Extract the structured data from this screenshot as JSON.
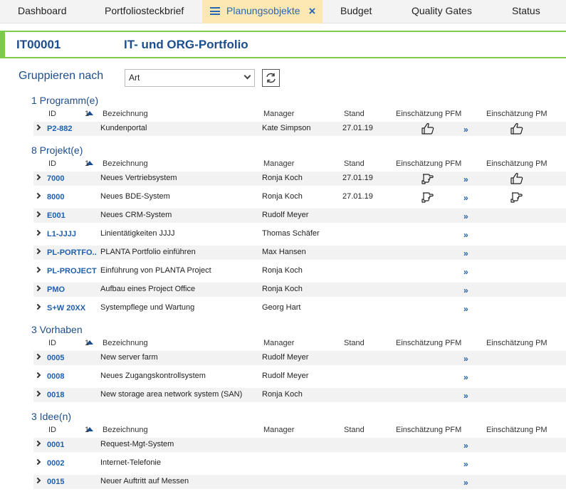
{
  "tabs": [
    {
      "label": "Dashboard"
    },
    {
      "label": "Portfoliosteckbrief"
    },
    {
      "label": "Planungsobjekte",
      "active": true
    },
    {
      "label": "Budget"
    },
    {
      "label": "Quality Gates"
    },
    {
      "label": "Status"
    }
  ],
  "header": {
    "code": "IT00001",
    "title": "IT- und ORG-Portfolio"
  },
  "grouping": {
    "label": "Gruppieren nach",
    "selected": "Art"
  },
  "columns": {
    "id": "ID",
    "sort": "1",
    "bezeichnung": "Bezeichnung",
    "manager": "Manager",
    "stand": "Stand",
    "pfm": "Einschätzung PFM",
    "pm": "Einschätzung PM"
  },
  "link_symbol": "»",
  "sections": [
    {
      "title": "1 Programm(e)",
      "rows": [
        {
          "id": "P2-882",
          "bezeichnung": "Kundenportal",
          "manager": "Kate Simpson",
          "stand": "27.01.19",
          "pfm": "thumbs-up-icon",
          "pm": "thumbs-up-icon"
        }
      ]
    },
    {
      "title": "8 Projekt(e)",
      "rows": [
        {
          "id": "7000",
          "bezeichnung": "Neues Vertriebsystem",
          "manager": "Ronja Koch",
          "stand": "27.01.19",
          "pfm": "thumbs-sideways-icon",
          "pm": "thumbs-up-icon"
        },
        {
          "id": "8000",
          "bezeichnung": "Neues BDE-System",
          "manager": "Ronja Koch",
          "stand": "27.01.19",
          "pfm": "thumbs-sideways-icon",
          "pm": "thumbs-sideways-icon"
        },
        {
          "id": "E001",
          "bezeichnung": "Neues CRM-System",
          "manager": "Rudolf Meyer",
          "stand": "",
          "pfm": "",
          "pm": ""
        },
        {
          "id": "L1-JJJJ",
          "bezeichnung": "Linientätigkeiten JJJJ",
          "manager": "Thomas Schäfer",
          "stand": "",
          "pfm": "",
          "pm": ""
        },
        {
          "id": "PL-PORTFO...",
          "bezeichnung": "PLANTA Portfolio einführen",
          "manager": "Max Hansen",
          "stand": "",
          "pfm": "",
          "pm": ""
        },
        {
          "id": "PL-PROJECT",
          "bezeichnung": "Einführung von PLANTA Project",
          "manager": "Ronja Koch",
          "stand": "",
          "pfm": "",
          "pm": ""
        },
        {
          "id": "PMO",
          "bezeichnung": "Aufbau eines Project Office",
          "manager": "Ronja Koch",
          "stand": "",
          "pfm": "",
          "pm": ""
        },
        {
          "id": "S+W 20XX",
          "bezeichnung": "Systempflege und Wartung",
          "manager": "Georg Hart",
          "stand": "",
          "pfm": "",
          "pm": ""
        }
      ]
    },
    {
      "title": "3 Vorhaben",
      "rows": [
        {
          "id": "0005",
          "bezeichnung": "New server farm",
          "manager": "Rudolf Meyer",
          "stand": "",
          "pfm": "",
          "pm": ""
        },
        {
          "id": "0008",
          "bezeichnung": "Neues Zugangskontrollsystem",
          "manager": "Rudolf Meyer",
          "stand": "",
          "pfm": "",
          "pm": ""
        },
        {
          "id": "0018",
          "bezeichnung": "New storage area network system (SAN)",
          "manager": "Ronja Koch",
          "stand": "",
          "pfm": "",
          "pm": ""
        }
      ]
    },
    {
      "title": "3 Idee(n)",
      "rows": [
        {
          "id": "0001",
          "bezeichnung": "Request-Mgt-System",
          "manager": "",
          "stand": "",
          "pfm": "",
          "pm": ""
        },
        {
          "id": "0002",
          "bezeichnung": "Internet-Telefonie",
          "manager": "",
          "stand": "",
          "pfm": "",
          "pm": ""
        },
        {
          "id": "0015",
          "bezeichnung": "Neuer Auftritt auf Messen",
          "manager": "",
          "stand": "",
          "pfm": "",
          "pm": ""
        }
      ]
    }
  ]
}
